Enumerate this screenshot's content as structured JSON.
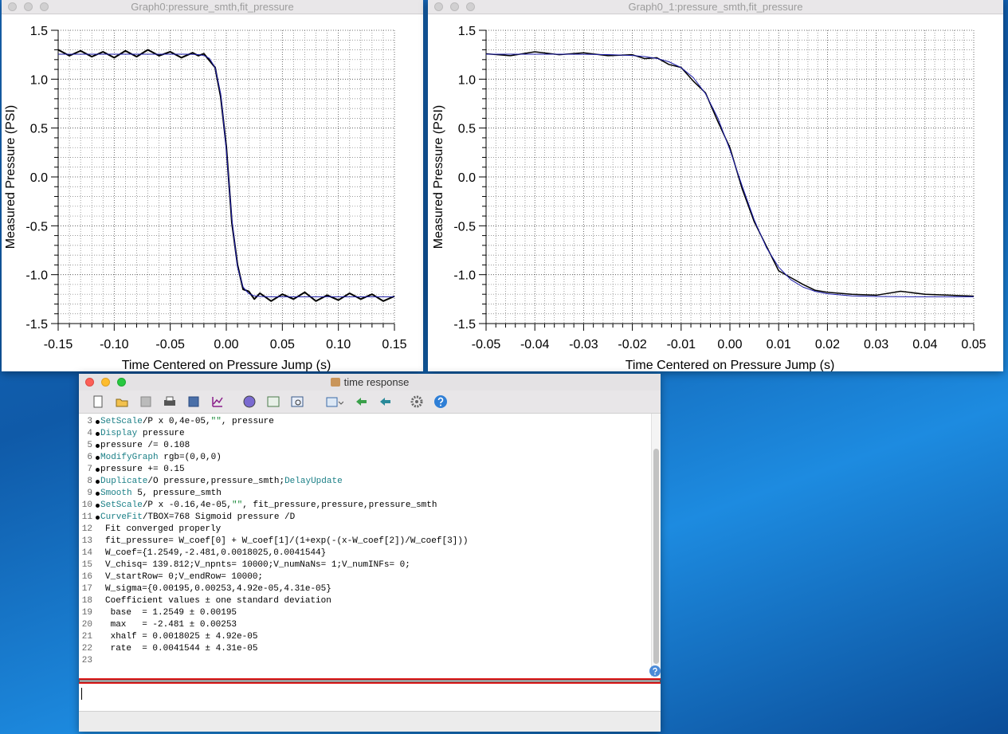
{
  "windows": {
    "graph0": "Graph0:pressure_smth,fit_pressure",
    "graph1": "Graph0_1:pressure_smth,fit_pressure"
  },
  "chart_data": [
    {
      "type": "line",
      "xlabel": "Time Centered on Pressure Jump (s)",
      "ylabel": "Measured Pressure (PSI)",
      "xlim": [
        -0.15,
        0.15
      ],
      "ylim": [
        -1.5,
        1.5
      ],
      "xticks": [
        -0.15,
        {
          "value": -0.1,
          "label": "-0.10"
        },
        -0.05,
        {
          "value": 0,
          "label": "0.00"
        },
        0.05,
        {
          "value": 0.1,
          "label": "0.10"
        },
        0.15
      ],
      "yticks": [
        1.5,
        {
          "value": 1,
          "label": "1.0"
        },
        0.5,
        {
          "value": 0,
          "label": "0.0"
        },
        -0.5,
        {
          "value": -1,
          "label": "-1.0"
        },
        -1.5
      ],
      "grid": true,
      "minor_grid": {
        "x": 5,
        "y": 5
      },
      "x": [
        -0.15,
        -0.14,
        -0.13,
        -0.12,
        -0.11,
        -0.1,
        -0.09,
        -0.08,
        -0.07,
        -0.06,
        -0.05,
        -0.04,
        -0.03,
        -0.025,
        -0.02,
        -0.015,
        -0.01,
        -0.005,
        0,
        0.005,
        0.01,
        0.015,
        0.02,
        0.025,
        0.03,
        0.04,
        0.05,
        0.06,
        0.07,
        0.08,
        0.09,
        0.1,
        0.11,
        0.12,
        0.13,
        0.14,
        0.15
      ],
      "series": [
        {
          "color": "#000000",
          "width": 2,
          "values": [
            1.3,
            1.24,
            1.29,
            1.23,
            1.28,
            1.22,
            1.29,
            1.23,
            1.3,
            1.24,
            1.28,
            1.22,
            1.27,
            1.24,
            1.26,
            1.19,
            1.12,
            0.82,
            0.31,
            -0.47,
            -0.9,
            -1.15,
            -1.17,
            -1.25,
            -1.19,
            -1.27,
            -1.2,
            -1.25,
            -1.18,
            -1.27,
            -1.21,
            -1.26,
            -1.19,
            -1.25,
            -1.2,
            -1.27,
            -1.22
          ]
        },
        {
          "color": "#1a1aa8",
          "width": 1,
          "values": [
            1.255,
            1.255,
            1.255,
            1.255,
            1.255,
            1.255,
            1.255,
            1.255,
            1.255,
            1.255,
            1.255,
            1.255,
            1.254,
            1.251,
            1.242,
            1.212,
            1.118,
            0.851,
            0.279,
            -0.441,
            -0.923,
            -1.127,
            -1.195,
            -1.217,
            -1.223,
            -1.226,
            -1.226,
            -1.226,
            -1.226,
            -1.226,
            -1.226,
            -1.226,
            -1.226,
            -1.226,
            -1.226,
            -1.226,
            -1.226
          ]
        }
      ]
    },
    {
      "type": "line",
      "xlabel": "Time Centered on Pressure Jump (s)",
      "ylabel": "Measured Pressure (PSI)",
      "xlim": [
        -0.05,
        0.05
      ],
      "ylim": [
        -1.5,
        1.5
      ],
      "xticks": [
        -0.05,
        -0.04,
        -0.03,
        -0.02,
        -0.01,
        {
          "value": 0,
          "label": "0.00"
        },
        0.01,
        0.02,
        0.03,
        0.04,
        0.05
      ],
      "yticks": [
        1.5,
        {
          "value": 1,
          "label": "1.0"
        },
        0.5,
        {
          "value": 0,
          "label": "0.0"
        },
        -0.5,
        {
          "value": -1,
          "label": "-1.0"
        },
        -1.5
      ],
      "grid": true,
      "minor_grid": {
        "x": 5,
        "y": 5
      },
      "x": [
        -0.05,
        -0.045,
        -0.04,
        -0.035,
        -0.03,
        -0.025,
        -0.02,
        -0.0175,
        -0.015,
        -0.0125,
        -0.01,
        -0.0075,
        -0.005,
        -0.0025,
        0,
        0.0025,
        0.005,
        0.0075,
        0.01,
        0.0125,
        0.015,
        0.0175,
        0.02,
        0.025,
        0.03,
        0.035,
        0.04,
        0.045,
        0.05
      ],
      "series": [
        {
          "color": "#000000",
          "width": 1.5,
          "values": [
            1.26,
            1.24,
            1.28,
            1.25,
            1.27,
            1.24,
            1.25,
            1.21,
            1.22,
            1.15,
            1.12,
            0.98,
            0.86,
            0.57,
            0.3,
            -0.12,
            -0.46,
            -0.71,
            -0.96,
            -1.03,
            -1.1,
            -1.16,
            -1.18,
            -1.2,
            -1.21,
            -1.17,
            -1.2,
            -1.21,
            -1.22
          ]
        },
        {
          "color": "#1a1aa8",
          "width": 1,
          "values": [
            1.255,
            1.255,
            1.255,
            1.255,
            1.254,
            1.251,
            1.242,
            1.231,
            1.212,
            1.178,
            1.118,
            1.016,
            0.851,
            0.605,
            0.279,
            -0.09,
            -0.441,
            -0.724,
            -0.923,
            -1.051,
            -1.127,
            -1.171,
            -1.195,
            -1.217,
            -1.223,
            -1.225,
            -1.226,
            -1.226,
            -1.226
          ]
        }
      ]
    }
  ],
  "command_window": {
    "title": "time response",
    "lines": [
      {
        "n": 3,
        "cmd": true,
        "parts": [
          {
            "text": "SetScale",
            "style": "kw"
          },
          {
            "text": "/P x 0,4e-05,",
            "style": "plain"
          },
          {
            "text": "\"\"",
            "style": "str"
          },
          {
            "text": ", pressure",
            "style": "plain"
          }
        ]
      },
      {
        "n": 4,
        "cmd": true,
        "parts": [
          {
            "text": "Display",
            "style": "kw"
          },
          {
            "text": " pressure",
            "style": "plain"
          }
        ]
      },
      {
        "n": 5,
        "cmd": true,
        "parts": [
          {
            "text": "pressure /= 0.108",
            "style": "plain"
          }
        ]
      },
      {
        "n": 6,
        "cmd": true,
        "parts": [
          {
            "text": "ModifyGraph",
            "style": "kw"
          },
          {
            "text": " rgb=(0,0,0)",
            "style": "plain"
          }
        ]
      },
      {
        "n": 7,
        "cmd": true,
        "parts": [
          {
            "text": "pressure += 0.15",
            "style": "plain"
          }
        ]
      },
      {
        "n": 8,
        "cmd": true,
        "parts": [
          {
            "text": "Duplicate",
            "style": "kw"
          },
          {
            "text": "/O pressure,pressure_smth;",
            "style": "plain"
          },
          {
            "text": "DelayUpdate",
            "style": "kw"
          }
        ]
      },
      {
        "n": 9,
        "cmd": true,
        "parts": [
          {
            "text": "Smooth",
            "style": "kw"
          },
          {
            "text": " 5, pressure_smth",
            "style": "plain"
          }
        ]
      },
      {
        "n": 10,
        "cmd": true,
        "parts": [
          {
            "text": "SetScale",
            "style": "kw"
          },
          {
            "text": "/P x -0.16,4e-05,",
            "style": "plain"
          },
          {
            "text": "\"\"",
            "style": "str"
          },
          {
            "text": ", fit_pressure,pressure,pressure_smth",
            "style": "plain"
          }
        ]
      },
      {
        "n": 11,
        "cmd": true,
        "parts": [
          {
            "text": "CurveFit",
            "style": "kw"
          },
          {
            "text": "/TBOX=768 Sigmoid pressure /D",
            "style": "plain"
          }
        ]
      },
      {
        "n": 12,
        "cmd": false,
        "parts": [
          {
            "text": "Fit converged properly",
            "style": "plain"
          }
        ]
      },
      {
        "n": 13,
        "cmd": false,
        "parts": [
          {
            "text": "fit_pressure= W_coef[0] + W_coef[1]/(1+exp(-(x-W_coef[2])/W_coef[3]))",
            "style": "plain"
          }
        ]
      },
      {
        "n": 14,
        "cmd": false,
        "parts": [
          {
            "text": "W_coef={1.2549,-2.481,0.0018025,0.0041544}",
            "style": "plain"
          }
        ]
      },
      {
        "n": 15,
        "cmd": false,
        "parts": [
          {
            "text": "V_chisq= 139.812;V_npnts= 10000;V_numNaNs= 1;V_numINFs= 0;",
            "style": "plain"
          }
        ]
      },
      {
        "n": 16,
        "cmd": false,
        "parts": [
          {
            "text": "V_startRow= 0;V_endRow= 10000;",
            "style": "plain"
          }
        ]
      },
      {
        "n": 17,
        "cmd": false,
        "parts": [
          {
            "text": "W_sigma={0.00195,0.00253,4.92e-05,4.31e-05}",
            "style": "plain"
          }
        ]
      },
      {
        "n": 18,
        "cmd": false,
        "parts": [
          {
            "text": "Coefficient values ± one standard deviation",
            "style": "plain"
          }
        ]
      },
      {
        "n": 19,
        "cmd": false,
        "parts": [
          {
            "text": " base  = 1.2549 ± 0.00195",
            "style": "plain"
          }
        ]
      },
      {
        "n": 20,
        "cmd": false,
        "parts": [
          {
            "text": " max   = -2.481 ± 0.00253",
            "style": "plain"
          }
        ]
      },
      {
        "n": 21,
        "cmd": false,
        "parts": [
          {
            "text": " xhalf = 0.0018025 ± 4.92e-05",
            "style": "plain"
          }
        ]
      },
      {
        "n": 22,
        "cmd": false,
        "parts": [
          {
            "text": " rate  = 0.0041544 ± 4.31e-05",
            "style": "plain"
          }
        ]
      },
      {
        "n": 23,
        "cmd": false,
        "parts": []
      }
    ]
  }
}
